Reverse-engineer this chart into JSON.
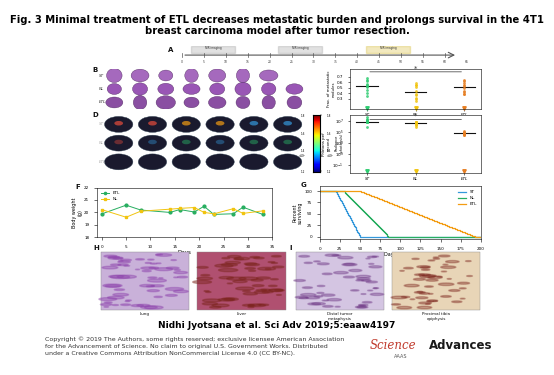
{
  "title_line1": "Fig. 3 Minimal treatment of ETL decreases metastatic burden and prolongs survival in the 4T1",
  "title_line2": "breast carcinoma model after tumor resection.",
  "author_citation": "Nidhi Jyotsana et al. Sci Adv 2019;5:eaaw4197",
  "copyright_line1": "Copyright © 2019 The Authors, some rights reserved; exclusive licensee American Association",
  "copyright_line2": "for the Advancement of Science. No claim to original U.S. Government Works. Distributed",
  "copyright_line3": "under a Creative Commons Attribution NonCommercial License 4.0 (CC BY-NC).",
  "science_word": "Science",
  "advances_word": "Advances",
  "aaas_text": "AAAS",
  "bg_color": "#ffffff",
  "title_color": "#000000",
  "title_fontsize": 7.2,
  "author_fontsize": 6.5,
  "copyright_fontsize": 4.5,
  "logo_science_color": "#c0392b",
  "logo_advances_color": "#1a1a1a",
  "groups": [
    "ST",
    "NL",
    "ETL"
  ],
  "colors_scatter": [
    "#2ecc71",
    "#f1c40f",
    "#e67e22"
  ],
  "lung_oval_color": "#8e44ad",
  "lung_oval_edge": "#5b2c6f",
  "survival_colors": [
    "#3498db",
    "#27ae60",
    "#f39c12"
  ],
  "body_weight_colors": [
    "#27ae60",
    "#f1c40f"
  ]
}
